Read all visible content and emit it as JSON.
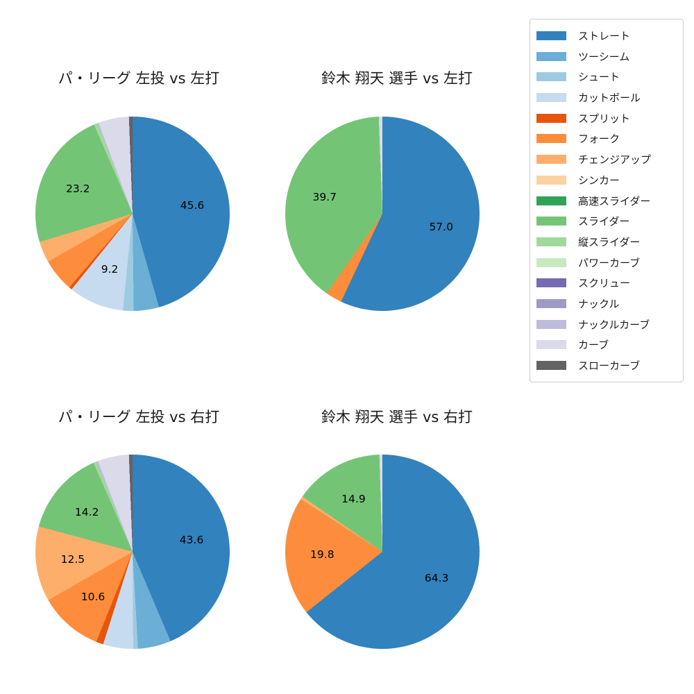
{
  "page": {
    "background": "#ffffff"
  },
  "legend": {
    "items": [
      {
        "label": "ストレート",
        "color": "#3182bd"
      },
      {
        "label": "ツーシーム",
        "color": "#6baed6"
      },
      {
        "label": "シュート",
        "color": "#9ecae1"
      },
      {
        "label": "カットボール",
        "color": "#c6dbef"
      },
      {
        "label": "スプリット",
        "color": "#e6550d"
      },
      {
        "label": "フォーク",
        "color": "#fd8d3c"
      },
      {
        "label": "チェンジアップ",
        "color": "#fdae6b"
      },
      {
        "label": "シンカー",
        "color": "#fdd0a2"
      },
      {
        "label": "高速スライダー",
        "color": "#31a354"
      },
      {
        "label": "スライダー",
        "color": "#74c476"
      },
      {
        "label": "縦スライダー",
        "color": "#a1d99b"
      },
      {
        "label": "パワーカーブ",
        "color": "#c7e9c0"
      },
      {
        "label": "スクリュー",
        "color": "#756bb1"
      },
      {
        "label": "ナックル",
        "color": "#9e9ac8"
      },
      {
        "label": "ナックルカーブ",
        "color": "#bcbddc"
      },
      {
        "label": "カーブ",
        "color": "#dadaeb"
      },
      {
        "label": "スローカーブ",
        "color": "#636363"
      }
    ]
  },
  "chart_data": [
    {
      "type": "pie",
      "title": "パ・リーグ 左投 vs 左打",
      "start_angle_deg": 0,
      "direction": "clockwise",
      "label_threshold": 9,
      "slices": [
        {
          "name": "ストレート",
          "value": 45.6
        },
        {
          "name": "ツーシーム",
          "value": 4.2
        },
        {
          "name": "シュート",
          "value": 1.8
        },
        {
          "name": "カットボール",
          "value": 9.2
        },
        {
          "name": "スプリット",
          "value": 0.5
        },
        {
          "name": "フォーク",
          "value": 5.5
        },
        {
          "name": "チェンジアップ",
          "value": 3.5
        },
        {
          "name": "スライダー",
          "value": 23.2
        },
        {
          "name": "縦スライダー",
          "value": 0.6
        },
        {
          "name": "ナックルカーブ",
          "value": 0.2
        },
        {
          "name": "カーブ",
          "value": 5.1
        },
        {
          "name": "スローカーブ",
          "value": 0.6
        }
      ]
    },
    {
      "type": "pie",
      "title": "鈴木 翔天 選手 vs 左打",
      "start_angle_deg": 0,
      "direction": "clockwise",
      "label_threshold": 9,
      "slices": [
        {
          "name": "ストレート",
          "value": 57.0
        },
        {
          "name": "フォーク",
          "value": 2.7
        },
        {
          "name": "スライダー",
          "value": 39.7
        },
        {
          "name": "カーブ",
          "value": 0.6
        }
      ]
    },
    {
      "type": "pie",
      "title": "パ・リーグ 左投 vs 右打",
      "start_angle_deg": 0,
      "direction": "clockwise",
      "label_threshold": 9,
      "slices": [
        {
          "name": "ストレート",
          "value": 43.6
        },
        {
          "name": "ツーシーム",
          "value": 5.5
        },
        {
          "name": "シュート",
          "value": 0.8
        },
        {
          "name": "カットボール",
          "value": 5.0
        },
        {
          "name": "スプリット",
          "value": 1.2
        },
        {
          "name": "フォーク",
          "value": 10.6
        },
        {
          "name": "チェンジアップ",
          "value": 12.5
        },
        {
          "name": "スライダー",
          "value": 14.2
        },
        {
          "name": "縦スライダー",
          "value": 0.5
        },
        {
          "name": "ナックルカーブ",
          "value": 0.3
        },
        {
          "name": "カーブ",
          "value": 5.2
        },
        {
          "name": "スローカーブ",
          "value": 0.6
        }
      ]
    },
    {
      "type": "pie",
      "title": "鈴木 翔天 選手 vs 右打",
      "start_angle_deg": 0,
      "direction": "clockwise",
      "label_threshold": 9,
      "slices": [
        {
          "name": "ストレート",
          "value": 64.3
        },
        {
          "name": "フォーク",
          "value": 19.8
        },
        {
          "name": "チェンジアップ",
          "value": 0.5
        },
        {
          "name": "スライダー",
          "value": 14.9
        },
        {
          "name": "カーブ",
          "value": 0.5
        }
      ]
    }
  ]
}
